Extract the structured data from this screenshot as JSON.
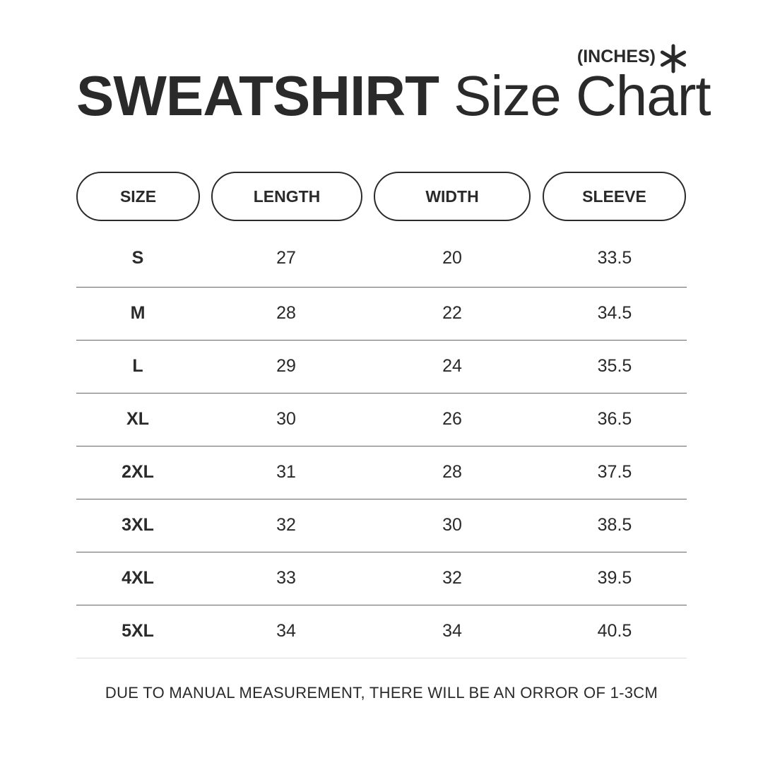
{
  "header": {
    "title_bold": "SWEATSHIRT",
    "title_light": "Size Chart",
    "units": "(INCHES)",
    "units_icon": "asterisk-icon"
  },
  "columns": [
    "SIZE",
    "LENGTH",
    "WIDTH",
    "SLEEVE"
  ],
  "rows": [
    [
      "S",
      "27",
      "20",
      "33.5"
    ],
    [
      "M",
      "28",
      "22",
      "34.5"
    ],
    [
      "L",
      "29",
      "24",
      "35.5"
    ],
    [
      "XL",
      "30",
      "26",
      "36.5"
    ],
    [
      "2XL",
      "31",
      "28",
      "37.5"
    ],
    [
      "3XL",
      "32",
      "30",
      "38.5"
    ],
    [
      "4XL",
      "33",
      "32",
      "39.5"
    ],
    [
      "5XL",
      "34",
      "34",
      "40.5"
    ]
  ],
  "footer": "DUE TO MANUAL MEASUREMENT, THERE WILL BE AN ORROR OF 1-3CM",
  "chart_data": {
    "type": "table",
    "title": "SWEATSHIRT Size Chart",
    "units": "(INCHES)",
    "columns": [
      "SIZE",
      "LENGTH",
      "WIDTH",
      "SLEEVE"
    ],
    "rows": [
      [
        "S",
        27,
        20,
        33.5
      ],
      [
        "M",
        28,
        22,
        34.5
      ],
      [
        "L",
        29,
        24,
        35.5
      ],
      [
        "XL",
        30,
        26,
        36.5
      ],
      [
        "2XL",
        31,
        28,
        37.5
      ],
      [
        "3XL",
        32,
        30,
        38.5
      ],
      [
        "4XL",
        33,
        32,
        39.5
      ],
      [
        "5XL",
        34,
        34,
        40.5
      ]
    ]
  }
}
